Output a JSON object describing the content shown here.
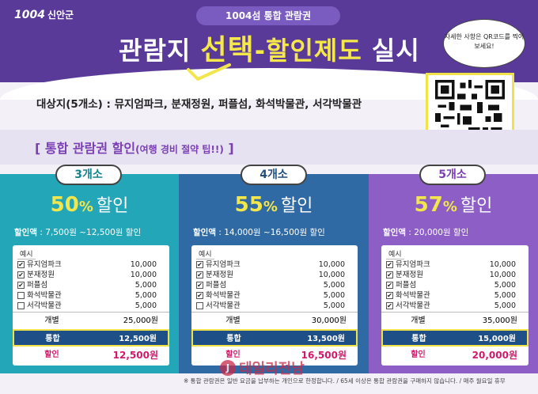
{
  "header": {
    "logo_mark": "1004",
    "logo_org": "신안군",
    "ticket": "1004섬 통합 관람권",
    "headline_pre": "관람지 ",
    "headline_select": "선택",
    "headline_dash": "-",
    "headline_discount": "할인제도",
    "headline_post": " 실시",
    "qr_note": "자세한 사항은 QR코드를 찍어보세요!"
  },
  "targets": "대상지(5개소) : 뮤지엄파크, 분재정원, 퍼플섬, 화석박물관, 서각박물관",
  "tip": {
    "open": "[ ",
    "title": "통합 관람권 할인",
    "note": "(여행 경비 절약 팁!!)",
    "close": " ]"
  },
  "panels": [
    {
      "tab": "3개소",
      "rate_num": "50",
      "rate_pct": "%",
      "rate_word": "할인",
      "amount_label": "할인액",
      "amount_value": " : 7,500원 ~12,500원 할인",
      "example_label": "예시",
      "items": [
        {
          "mark": "✔",
          "name": "뮤지엄파크",
          "price": "10,000"
        },
        {
          "mark": "✔",
          "name": "분재정원",
          "price": "10,000"
        },
        {
          "mark": "✔",
          "name": "퍼플섬",
          "price": "5,000"
        },
        {
          "mark": "",
          "name": "화석박물관",
          "price": "5,000"
        },
        {
          "mark": "",
          "name": "서각박물관",
          "price": "5,000"
        }
      ],
      "total_label": "개별",
      "total_value": "25,000원",
      "combined_label": "통합",
      "combined_value": "12,500원",
      "discount_label": "할인",
      "discount_value": "12,500원"
    },
    {
      "tab": "4개소",
      "rate_num": "55",
      "rate_pct": "%",
      "rate_word": "할인",
      "amount_label": "할인액",
      "amount_value": " : 14,000원 ~16,500원 할인",
      "example_label": "예시",
      "items": [
        {
          "mark": "✔",
          "name": "뮤지엄파크",
          "price": "10,000"
        },
        {
          "mark": "✔",
          "name": "분재정원",
          "price": "10,000"
        },
        {
          "mark": "✔",
          "name": "퍼플섬",
          "price": "5,000"
        },
        {
          "mark": "✔",
          "name": "화석박물관",
          "price": "5,000"
        },
        {
          "mark": "",
          "name": "서각박물관",
          "price": "5,000"
        }
      ],
      "total_label": "개별",
      "total_value": "30,000원",
      "combined_label": "통합",
      "combined_value": "13,500원",
      "discount_label": "할인",
      "discount_value": "16,500원"
    },
    {
      "tab": "5개소",
      "rate_num": "57",
      "rate_pct": "%",
      "rate_word": "할인",
      "amount_label": "할인액",
      "amount_value": " : 20,000원 할인",
      "example_label": "예시",
      "items": [
        {
          "mark": "✔",
          "name": "뮤지엄파크",
          "price": "10,000"
        },
        {
          "mark": "✔",
          "name": "분재정원",
          "price": "10,000"
        },
        {
          "mark": "✔",
          "name": "퍼플섬",
          "price": "5,000"
        },
        {
          "mark": "✔",
          "name": "화석박물관",
          "price": "5,000"
        },
        {
          "mark": "✔",
          "name": "서각박물관",
          "price": "5,000"
        }
      ],
      "total_label": "개별",
      "total_value": "35,000원",
      "combined_label": "통합",
      "combined_value": "15,000원",
      "discount_label": "할인",
      "discount_value": "20,000원"
    }
  ],
  "footnote": "※ 통합 관람권은 일반 요금을 납부하는 개인으로 한정합니다. / 65세 이상은 통합 관람권을 구매하지 않습니다. / 매주 월요일 휴무",
  "watermark": "데일리전남",
  "colors": {
    "header": "#5a3a98",
    "accent_yellow": "#f3e64c",
    "panel_3": "#23a6b7",
    "panel_4": "#2f6aa5",
    "panel_5": "#8c5ec6",
    "discount_red": "#d2186a"
  }
}
